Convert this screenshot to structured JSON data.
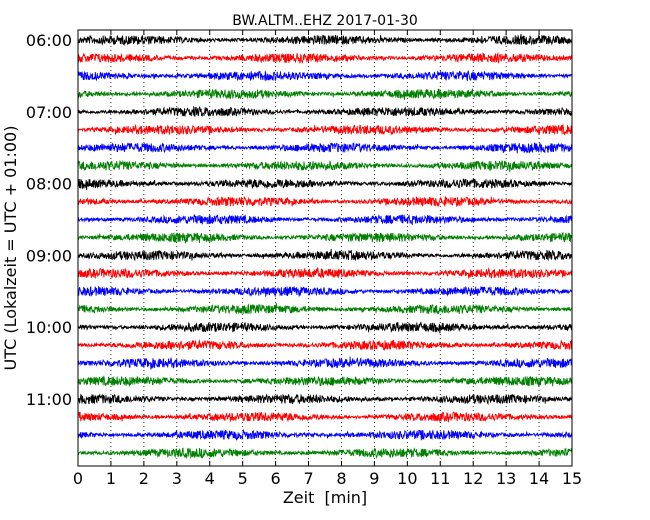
{
  "chart_data": {
    "type": "line",
    "subtype": "dayplot-seismogram",
    "title": "BW.ALTM..EHZ 2017-01-30",
    "xlabel": "Zeit  [min]",
    "ylabel": "UTC (Lokalzeit = UTC + 01:00)",
    "xlim": [
      0,
      15
    ],
    "x_ticks": [
      0,
      1,
      2,
      3,
      4,
      5,
      6,
      7,
      8,
      9,
      10,
      11,
      12,
      13,
      14,
      15
    ],
    "grid": "vertical dotted at each minute",
    "y_tick_labels": [
      "06:00",
      "07:00",
      "08:00",
      "09:00",
      "10:00",
      "11:00"
    ],
    "trace_interval_minutes": 15,
    "trace_colors": [
      "#000000",
      "#ff0000",
      "#0000ff",
      "#008000"
    ],
    "traces": [
      {
        "start": "06:00",
        "color": "#000000"
      },
      {
        "start": "06:15",
        "color": "#ff0000"
      },
      {
        "start": "06:30",
        "color": "#0000ff"
      },
      {
        "start": "06:45",
        "color": "#008000"
      },
      {
        "start": "07:00",
        "color": "#000000"
      },
      {
        "start": "07:15",
        "color": "#ff0000"
      },
      {
        "start": "07:30",
        "color": "#0000ff"
      },
      {
        "start": "07:45",
        "color": "#008000"
      },
      {
        "start": "08:00",
        "color": "#000000"
      },
      {
        "start": "08:15",
        "color": "#ff0000"
      },
      {
        "start": "08:30",
        "color": "#0000ff"
      },
      {
        "start": "08:45",
        "color": "#008000"
      },
      {
        "start": "09:00",
        "color": "#000000"
      },
      {
        "start": "09:15",
        "color": "#ff0000"
      },
      {
        "start": "09:30",
        "color": "#0000ff"
      },
      {
        "start": "09:45",
        "color": "#008000"
      },
      {
        "start": "10:00",
        "color": "#000000"
      },
      {
        "start": "10:15",
        "color": "#ff0000"
      },
      {
        "start": "10:30",
        "color": "#0000ff"
      },
      {
        "start": "10:45",
        "color": "#008000"
      },
      {
        "start": "11:00",
        "color": "#000000"
      },
      {
        "start": "11:15",
        "color": "#ff0000"
      },
      {
        "start": "11:30",
        "color": "#0000ff"
      },
      {
        "start": "11:45",
        "color": "#008000"
      }
    ]
  }
}
